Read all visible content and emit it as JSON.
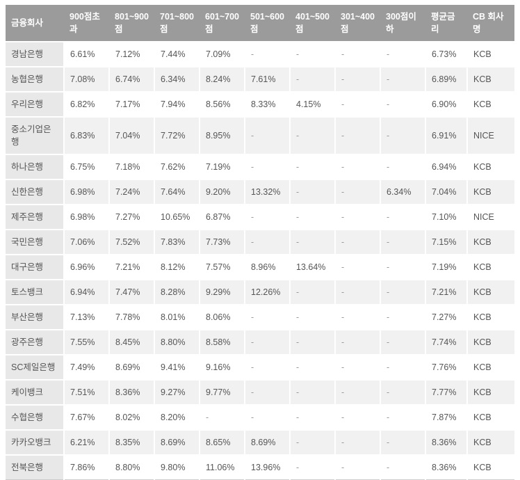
{
  "colors": {
    "header_bg": "#9b9b9b",
    "header_text": "#ffffff",
    "bank_col_bg": "#e8e8e8",
    "row_bg": "#ffffff",
    "row_alt_bg": "#f1f1f1",
    "cell_text": "#555555",
    "empty_text": "#999999",
    "separator": "#ffffff",
    "bottom_border": "#cccccc"
  },
  "table": {
    "columns": [
      "금융회사",
      "900점초과",
      "801~900점",
      "701~800점",
      "601~700점",
      "501~600점",
      "401~500점",
      "301~400점",
      "300점이하",
      "평균금리",
      "CB 회사명"
    ],
    "rows": [
      {
        "bank": "경남은행",
        "values": [
          "6.61%",
          "7.12%",
          "7.44%",
          "7.09%",
          "-",
          "-",
          "-",
          "-",
          "6.73%",
          "KCB"
        ]
      },
      {
        "bank": "농협은행",
        "values": [
          "7.08%",
          "6.74%",
          "6.34%",
          "8.24%",
          "7.61%",
          "-",
          "-",
          "-",
          "6.89%",
          "KCB"
        ]
      },
      {
        "bank": "우리은행",
        "values": [
          "6.82%",
          "7.17%",
          "7.94%",
          "8.56%",
          "8.33%",
          "4.15%",
          "-",
          "-",
          "6.90%",
          "KCB"
        ]
      },
      {
        "bank": "중소기업은행",
        "values": [
          "6.83%",
          "7.04%",
          "7.72%",
          "8.95%",
          "-",
          "-",
          "-",
          "-",
          "6.91%",
          "NICE"
        ]
      },
      {
        "bank": "하나은행",
        "values": [
          "6.75%",
          "7.18%",
          "7.62%",
          "7.19%",
          "-",
          "-",
          "-",
          "-",
          "6.94%",
          "KCB"
        ]
      },
      {
        "bank": "신한은행",
        "values": [
          "6.98%",
          "7.24%",
          "7.64%",
          "9.20%",
          "13.32%",
          "-",
          "-",
          "6.34%",
          "7.04%",
          "KCB"
        ]
      },
      {
        "bank": "제주은행",
        "values": [
          "6.98%",
          "7.27%",
          "10.65%",
          "6.87%",
          "-",
          "-",
          "-",
          "-",
          "7.10%",
          "NICE"
        ]
      },
      {
        "bank": "국민은행",
        "values": [
          "7.06%",
          "7.52%",
          "7.83%",
          "7.73%",
          "-",
          "-",
          "-",
          "-",
          "7.15%",
          "KCB"
        ]
      },
      {
        "bank": "대구은행",
        "values": [
          "6.96%",
          "7.21%",
          "8.12%",
          "7.57%",
          "8.96%",
          "13.64%",
          "-",
          "-",
          "7.19%",
          "KCB"
        ]
      },
      {
        "bank": "토스뱅크",
        "values": [
          "6.94%",
          "7.47%",
          "8.28%",
          "9.29%",
          "12.26%",
          "-",
          "-",
          "-",
          "7.21%",
          "KCB"
        ]
      },
      {
        "bank": "부산은행",
        "values": [
          "7.13%",
          "7.78%",
          "8.01%",
          "8.06%",
          "-",
          "-",
          "-",
          "-",
          "7.27%",
          "KCB"
        ]
      },
      {
        "bank": "광주은행",
        "values": [
          "7.55%",
          "8.45%",
          "8.80%",
          "8.58%",
          "-",
          "-",
          "-",
          "-",
          "7.74%",
          "KCB"
        ]
      },
      {
        "bank": "SC제일은행",
        "values": [
          "7.49%",
          "8.69%",
          "9.41%",
          "9.16%",
          "-",
          "-",
          "-",
          "-",
          "7.76%",
          "KCB"
        ]
      },
      {
        "bank": "케이뱅크",
        "values": [
          "7.51%",
          "8.36%",
          "9.27%",
          "9.77%",
          "-",
          "-",
          "-",
          "-",
          "7.77%",
          "KCB"
        ]
      },
      {
        "bank": "수협은행",
        "values": [
          "7.67%",
          "8.02%",
          "8.20%",
          "-",
          "-",
          "-",
          "-",
          "-",
          "7.87%",
          "KCB"
        ]
      },
      {
        "bank": "카카오뱅크",
        "values": [
          "6.21%",
          "8.35%",
          "8.69%",
          "8.65%",
          "8.69%",
          "-",
          "-",
          "-",
          "8.36%",
          "KCB"
        ]
      },
      {
        "bank": "전북은행",
        "values": [
          "7.86%",
          "8.80%",
          "9.80%",
          "11.06%",
          "13.96%",
          "-",
          "-",
          "-",
          "8.36%",
          "KCB"
        ]
      }
    ]
  }
}
